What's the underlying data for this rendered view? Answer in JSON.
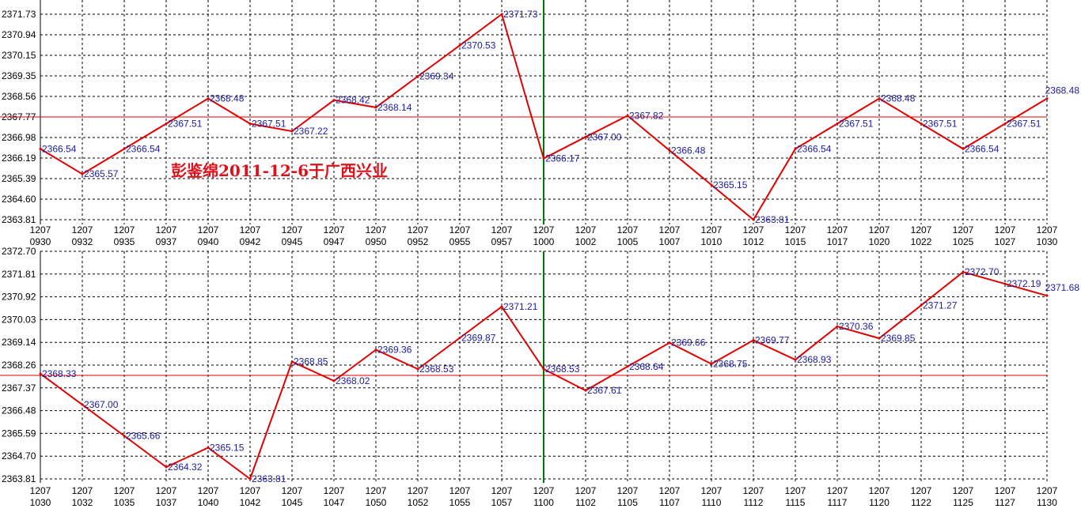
{
  "colors": {
    "series": "#e00000",
    "reference_line": "#e00000",
    "divider": "#007700",
    "label": "#1c1c9c",
    "grid": "#000000",
    "watermark": "#e0101a"
  },
  "watermark": "彭鉴绵2011-12-6于广西兴业",
  "chart_data": [
    {
      "type": "line",
      "x_top": [
        "1207",
        "1207",
        "1207",
        "1207",
        "1207",
        "1207",
        "1207",
        "1207",
        "1207",
        "1207",
        "1207",
        "1207",
        "1207",
        "1207",
        "1207",
        "1207",
        "1207",
        "1207",
        "1207",
        "1207",
        "1207",
        "1207",
        "1207",
        "1207",
        "1207"
      ],
      "x": [
        "0930",
        "0932",
        "0935",
        "0937",
        "0940",
        "0942",
        "0945",
        "0947",
        "0950",
        "0952",
        "0955",
        "0957",
        "1000",
        "1002",
        "1005",
        "1007",
        "1010",
        "1012",
        "1015",
        "1017",
        "1020",
        "1022",
        "1025",
        "1027",
        "1030"
      ],
      "yticks": [
        "2371.73",
        "2370.94",
        "2370.15",
        "2369.35",
        "2368.56",
        "2367.77",
        "2366.98",
        "2366.19",
        "2365.39",
        "2364.60",
        "2363.81"
      ],
      "ylim": [
        2363.81,
        2371.73
      ],
      "reference_line": 2367.77,
      "divider_index": 12,
      "grid": true,
      "values": [
        2366.54,
        2365.57,
        2366.54,
        2367.51,
        2368.48,
        2367.51,
        2367.22,
        2368.42,
        2368.14,
        2369.34,
        2370.53,
        2371.73,
        2366.17,
        2367.0,
        2367.82,
        2366.48,
        2365.15,
        2363.81,
        2366.54,
        2367.51,
        2368.48,
        2367.51,
        2366.54,
        2367.51,
        2368.48
      ],
      "labels": [
        "2366.54",
        "2365.57",
        "2366.54",
        "2367.51",
        "2368.48",
        "2367.51",
        "2367.22",
        "2368.42",
        "2368.14",
        "2369.34",
        "2370.53",
        "2371.73",
        "2366.17",
        "2367.00",
        "2367.82",
        "2366.48",
        "2365.15",
        "2363.81",
        "2366.54",
        "2367.51",
        "2368.48",
        "2367.51",
        "2366.54",
        "2367.51",
        "2368.48"
      ]
    },
    {
      "type": "line",
      "x_top": [
        "1207",
        "1207",
        "1207",
        "1207",
        "1207",
        "1207",
        "1207",
        "1207",
        "1207",
        "1207",
        "1207",
        "1207",
        "1207",
        "1207",
        "1207",
        "1207",
        "1207",
        "1207",
        "1207",
        "1207",
        "1207",
        "1207",
        "1207",
        "1207",
        "1207"
      ],
      "x": [
        "1030",
        "1032",
        "1035",
        "1037",
        "1040",
        "1042",
        "1045",
        "1047",
        "1050",
        "1052",
        "1055",
        "1057",
        "1100",
        "1102",
        "1105",
        "1107",
        "1110",
        "1112",
        "1115",
        "1117",
        "1120",
        "1122",
        "1125",
        "1127",
        "1130"
      ],
      "yticks": [
        "2372.70",
        "2371.81",
        "2370.92",
        "2370.03",
        "2369.14",
        "2368.26",
        "2367.37",
        "2366.48",
        "2365.59",
        "2364.70",
        "2363.81"
      ],
      "ylim": [
        2363.81,
        2373.59
      ],
      "reference_line": 2368.26,
      "divider_index": 12,
      "grid": true,
      "values": [
        2368.33,
        2367.0,
        2365.66,
        2364.32,
        2365.15,
        2363.81,
        2368.85,
        2368.02,
        2369.36,
        2368.53,
        2369.87,
        2371.21,
        2368.53,
        2367.61,
        2368.64,
        2369.66,
        2368.75,
        2369.77,
        2368.93,
        2370.36,
        2369.85,
        2371.27,
        2372.7,
        2372.19,
        2371.68
      ],
      "labels": [
        "2368.33",
        "2367.00",
        "2365.66",
        "2364.32",
        "2365.15",
        "2363.81",
        "2368.85",
        "2368.02",
        "2369.36",
        "2368.53",
        "2369.87",
        "2371.21",
        "2368.53",
        "2367.61",
        "2368.64",
        "2369.66",
        "2368.75",
        "2369.77",
        "2368.93",
        "2370.36",
        "2369.85",
        "2371.27",
        "2372.70",
        "2372.19",
        "2371.68"
      ]
    }
  ]
}
